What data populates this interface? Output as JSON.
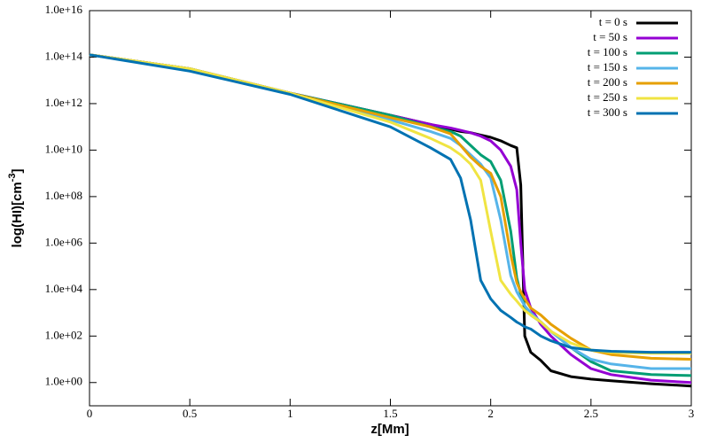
{
  "chart_data": {
    "type": "line",
    "xlabel": "z[Mm]",
    "ylabel": {
      "text": "log(HI)[cm",
      "superscript": "-3",
      "suffix": "]"
    },
    "x": [
      0,
      0.5,
      1,
      1.5,
      1.7,
      1.8,
      1.85,
      1.9,
      1.95,
      2.0,
      2.05,
      2.1,
      2.13,
      2.15,
      2.17,
      2.2,
      2.25,
      2.3,
      2.4,
      2.5,
      2.6,
      2.8,
      3.0
    ],
    "series": [
      {
        "name": "t = 0 s",
        "color": "#000000",
        "values": [
          126000000000000.0,
          31600000000000.0,
          2820000000000.0,
          316000000000.0,
          126000000000.0,
          79400000000.0,
          63100000000.0,
          56200000000.0,
          44700000000.0,
          35500000000.0,
          25100000000.0,
          15800000000.0,
          12600000000.0,
          316000000.0,
          100,
          20,
          8.9,
          3.2,
          1.8,
          1.4,
          1.2,
          0.89,
          0.71
        ]
      },
      {
        "name": "t = 50 s",
        "color": "#9400d3",
        "values": [
          126000000000000.0,
          31600000000000.0,
          2820000000000.0,
          316000000000.0,
          126000000000.0,
          89000000000.0,
          71000000000.0,
          56000000000.0,
          40000000000.0,
          25000000000.0,
          10000000000.0,
          2000000000.0,
          200000000.0,
          1000000.0,
          10000.0,
          1600,
          316,
          100,
          16,
          4,
          2.2,
          1.26,
          1
        ]
      },
      {
        "name": "t = 100 s",
        "color": "#009e73",
        "values": [
          126000000000000.0,
          31600000000000.0,
          2820000000000.0,
          316000000000.0,
          100000000000.0,
          63000000000.0,
          40000000000.0,
          16000000000.0,
          6300000000.0,
          3200000000.0,
          500000000.0,
          3200000.0,
          32000.0,
          6300,
          2000,
          800,
          400,
          160,
          32,
          8,
          3.2,
          2.2,
          2
        ]
      },
      {
        "name": "t = 150 s",
        "color": "#56b4e9",
        "values": [
          126000000000000.0,
          31600000000000.0,
          2820000000000.0,
          200000000000.0,
          63000000000.0,
          32000000000.0,
          16000000000.0,
          6300000000.0,
          2500000000.0,
          630000000.0,
          10000000.0,
          40000.0,
          8000,
          4000,
          2000,
          1000,
          400,
          160,
          32,
          10,
          6.3,
          4,
          4
        ]
      },
      {
        "name": "t = 200 s",
        "color": "#e69f00",
        "values": [
          126000000000000.0,
          31600000000000.0,
          2820000000000.0,
          250000000000.0,
          100000000000.0,
          50000000000.0,
          16000000000.0,
          5000000000.0,
          2000000000.0,
          1000000000.0,
          100000000.0,
          320000.0,
          20000.0,
          8000,
          4000,
          1600,
          800,
          320,
          80,
          25,
          16,
          11,
          10
        ]
      },
      {
        "name": "t = 250 s",
        "color": "#f0e442",
        "values": [
          126000000000000.0,
          31600000000000.0,
          2820000000000.0,
          160000000000.0,
          32000000000.0,
          12600000000.0,
          6300000000.0,
          2500000000.0,
          500000000.0,
          3200000.0,
          25000.0,
          6300,
          3200,
          2000,
          1260,
          800,
          400,
          160,
          50,
          25,
          20,
          18,
          18
        ]
      },
      {
        "name": "t = 300 s",
        "color": "#0072b2",
        "values": [
          126000000000000.0,
          25000000000000.0,
          2500000000000.0,
          100000000000.0,
          12600000000.0,
          4000000000.0,
          630000000.0,
          10000000.0,
          25000.0,
          4000,
          1260,
          630,
          400,
          320,
          250,
          200,
          100,
          63,
          32,
          25,
          22,
          20,
          20
        ]
      }
    ],
    "xlim": [
      0,
      3
    ],
    "xticks": [
      0,
      0.5,
      1,
      1.5,
      2,
      2.5,
      3
    ],
    "ylim": [
      0.1,
      1e+16
    ],
    "ylog": true,
    "yticks": [
      {
        "value": 1,
        "label": "1.0e+00"
      },
      {
        "value": 100,
        "label": "1.0e+02"
      },
      {
        "value": 10000.0,
        "label": "1.0e+04"
      },
      {
        "value": 1000000.0,
        "label": "1.0e+06"
      },
      {
        "value": 100000000.0,
        "label": "1.0e+08"
      },
      {
        "value": 10000000000.0,
        "label": "1.0e+10"
      },
      {
        "value": 1000000000000.0,
        "label": "1.0e+12"
      },
      {
        "value": 100000000000000.0,
        "label": "1.0e+14"
      },
      {
        "value": 1e+16,
        "label": "1.0e+16"
      }
    ],
    "grid": false,
    "legend": "top-right"
  }
}
